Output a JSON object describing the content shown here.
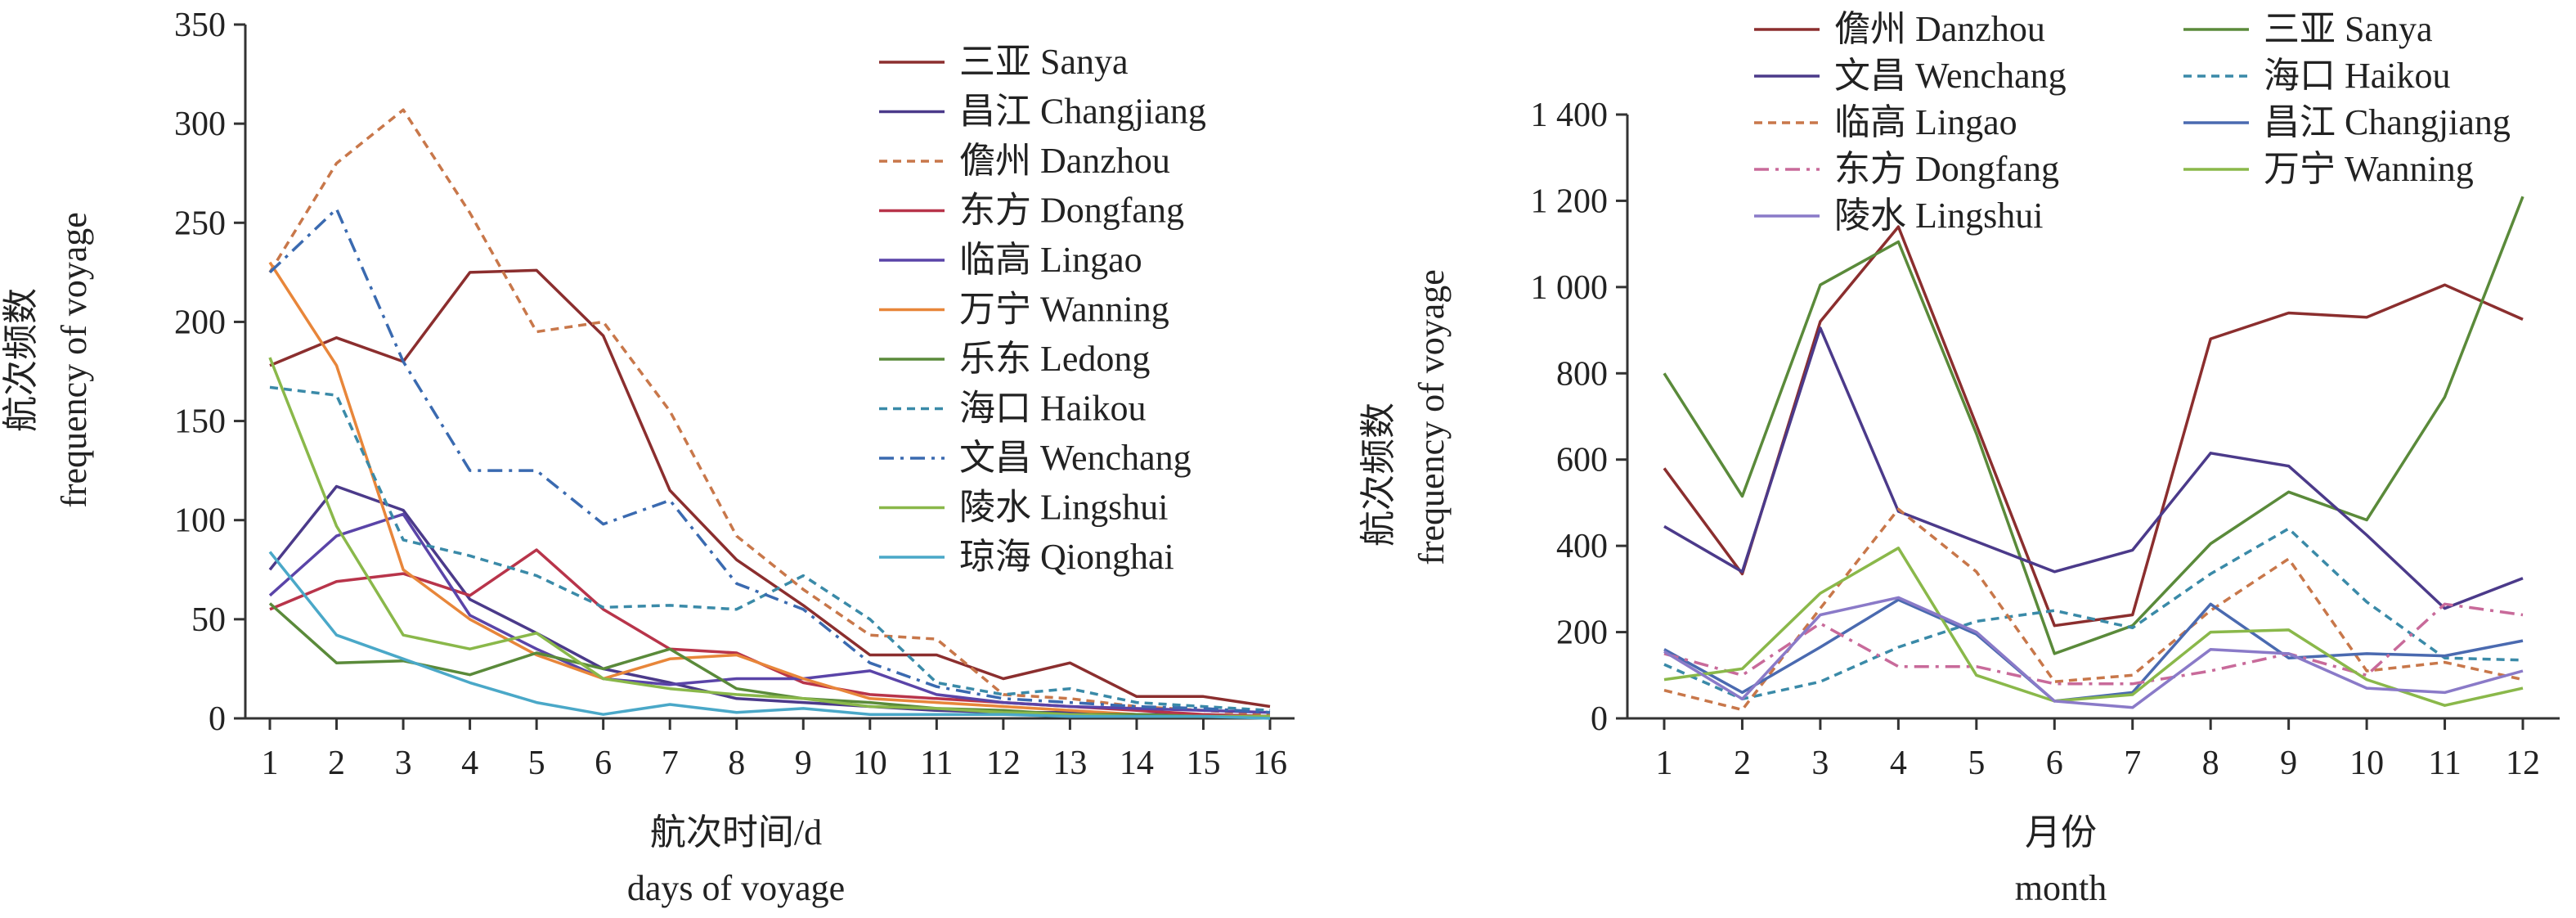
{
  "chart_data": [
    {
      "type": "line",
      "xlabel_cn": "航次时间/d",
      "xlabel_en": "days of voyage",
      "ylabel_cn": "航次频数",
      "ylabel_en": "frequency of voyage",
      "ylim": [
        0,
        350
      ],
      "yticks": [
        0,
        50,
        100,
        150,
        200,
        250,
        300,
        350
      ],
      "ytick_labels": [
        "0",
        "50",
        "100",
        "150",
        "200",
        "250",
        "300",
        "350"
      ],
      "x": [
        1,
        2,
        3,
        4,
        5,
        6,
        7,
        8,
        9,
        10,
        11,
        12,
        13,
        14,
        15,
        16
      ],
      "xtick_labels": [
        "1",
        "2",
        "3",
        "4",
        "5",
        "6",
        "7",
        "8",
        "9",
        "10",
        "11",
        "12",
        "13",
        "14",
        "15",
        "16"
      ],
      "legend_position": "top-right",
      "series": [
        {
          "name": "三亚 Sanya",
          "color": "#8b2e2e",
          "dash": "solid",
          "values": [
            178,
            192,
            180,
            225,
            226,
            193,
            115,
            80,
            57,
            32,
            32,
            20,
            28,
            11,
            11,
            6
          ]
        },
        {
          "name": "昌江 Changjiang",
          "color": "#4b3a8a",
          "dash": "solid",
          "values": [
            75,
            117,
            105,
            60,
            43,
            25,
            18,
            10,
            8,
            6,
            4,
            3,
            3,
            2,
            2,
            1
          ]
        },
        {
          "name": "儋州 Danzhou",
          "color": "#c8774a",
          "dash": "dashed",
          "values": [
            225,
            280,
            307,
            255,
            195,
            200,
            155,
            92,
            65,
            42,
            40,
            12,
            10,
            6,
            4,
            2
          ]
        },
        {
          "name": "东方 Dongfang",
          "color": "#b8344a",
          "dash": "solid",
          "values": [
            55,
            69,
            73,
            62,
            85,
            55,
            35,
            33,
            18,
            12,
            10,
            8,
            6,
            4,
            2,
            1
          ]
        },
        {
          "name": "临高 Lingao",
          "color": "#5a44a8",
          "dash": "solid",
          "values": [
            62,
            92,
            103,
            52,
            35,
            20,
            17,
            20,
            20,
            24,
            12,
            8,
            6,
            5,
            4,
            3
          ]
        },
        {
          "name": "万宁 Wanning",
          "color": "#e8863a",
          "dash": "solid",
          "values": [
            230,
            178,
            75,
            50,
            32,
            20,
            30,
            32,
            20,
            10,
            8,
            6,
            4,
            2,
            1,
            1
          ]
        },
        {
          "name": "乐东 Ledong",
          "color": "#5a8a3a",
          "dash": "solid",
          "values": [
            58,
            28,
            29,
            22,
            33,
            25,
            35,
            15,
            10,
            8,
            5,
            4,
            2,
            2,
            1,
            1
          ]
        },
        {
          "name": "海口 Haikou",
          "color": "#3a8aa8",
          "dash": "dashed",
          "values": [
            167,
            163,
            90,
            82,
            72,
            56,
            57,
            55,
            72,
            50,
            18,
            12,
            15,
            8,
            6,
            4
          ]
        },
        {
          "name": "文昌 Wenchang",
          "color": "#3a6ab0",
          "dash": "dashdot",
          "values": [
            225,
            257,
            180,
            125,
            125,
            98,
            110,
            68,
            55,
            28,
            16,
            10,
            8,
            6,
            5,
            3
          ]
        },
        {
          "name": "陵水 Lingshui",
          "color": "#8ab84a",
          "dash": "solid",
          "values": [
            182,
            97,
            42,
            35,
            43,
            20,
            15,
            12,
            10,
            6,
            5,
            3,
            2,
            1,
            1,
            1
          ]
        },
        {
          "name": "琼海 Qionghai",
          "color": "#4aa8c8",
          "dash": "solid",
          "values": [
            84,
            42,
            30,
            18,
            8,
            2,
            7,
            3,
            5,
            2,
            2,
            2,
            1,
            1,
            1,
            0
          ]
        }
      ]
    },
    {
      "type": "line",
      "xlabel_cn": "月份",
      "xlabel_en": "month",
      "ylabel_cn": "航次频数",
      "ylabel_en": "frequency of voyage",
      "ylim": [
        0,
        1400
      ],
      "yticks": [
        0,
        200,
        400,
        600,
        800,
        1000,
        1200,
        1400
      ],
      "ytick_labels": [
        "0",
        "200",
        "400",
        "600",
        "800",
        "1 000",
        "1 200",
        "1 400"
      ],
      "x": [
        1,
        2,
        3,
        4,
        5,
        6,
        7,
        8,
        9,
        10,
        11,
        12
      ],
      "xtick_labels": [
        "1",
        "2",
        "3",
        "4",
        "5",
        "6",
        "7",
        "8",
        "9",
        "10",
        "11",
        "12"
      ],
      "legend_position": "top",
      "series": [
        {
          "name": "儋州 Danzhou",
          "color": "#8b2e2e",
          "dash": "solid",
          "values": [
            580,
            335,
            920,
            1140,
            680,
            215,
            240,
            880,
            940,
            930,
            1005,
            925
          ]
        },
        {
          "name": "三亚 Sanya",
          "color": "#5a8a3a",
          "dash": "solid",
          "values": [
            800,
            515,
            1005,
            1105,
            660,
            150,
            215,
            405,
            525,
            460,
            745,
            1210
          ]
        },
        {
          "name": "文昌 Wenchang",
          "color": "#4b3a8a",
          "dash": "solid",
          "values": [
            445,
            340,
            905,
            480,
            410,
            340,
            390,
            615,
            585,
            425,
            255,
            325
          ]
        },
        {
          "name": "海口 Haikou",
          "color": "#3a8aa8",
          "dash": "dashed",
          "values": [
            125,
            45,
            85,
            165,
            225,
            250,
            210,
            335,
            440,
            270,
            140,
            135
          ]
        },
        {
          "name": "临高 Lingao",
          "color": "#c8774a",
          "dash": "dashed",
          "values": [
            65,
            20,
            255,
            485,
            340,
            85,
            100,
            250,
            370,
            110,
            130,
            90
          ]
        },
        {
          "name": "昌江 Changjiang",
          "color": "#4a6ab0",
          "dash": "solid",
          "values": [
            160,
            60,
            165,
            275,
            195,
            40,
            60,
            265,
            140,
            150,
            145,
            180
          ]
        },
        {
          "name": "东方 Dongfang",
          "color": "#c86a9a",
          "dash": "dashdot",
          "values": [
            150,
            100,
            220,
            120,
            120,
            80,
            80,
            110,
            150,
            100,
            265,
            240
          ]
        },
        {
          "name": "万宁 Wanning",
          "color": "#8ab84a",
          "dash": "solid",
          "values": [
            90,
            115,
            290,
            395,
            100,
            40,
            55,
            200,
            205,
            90,
            30,
            70
          ]
        },
        {
          "name": "陵水 Lingshui",
          "color": "#8a7ac8",
          "dash": "solid",
          "values": [
            155,
            45,
            240,
            280,
            200,
            40,
            25,
            160,
            150,
            70,
            60,
            110
          ]
        }
      ]
    }
  ]
}
